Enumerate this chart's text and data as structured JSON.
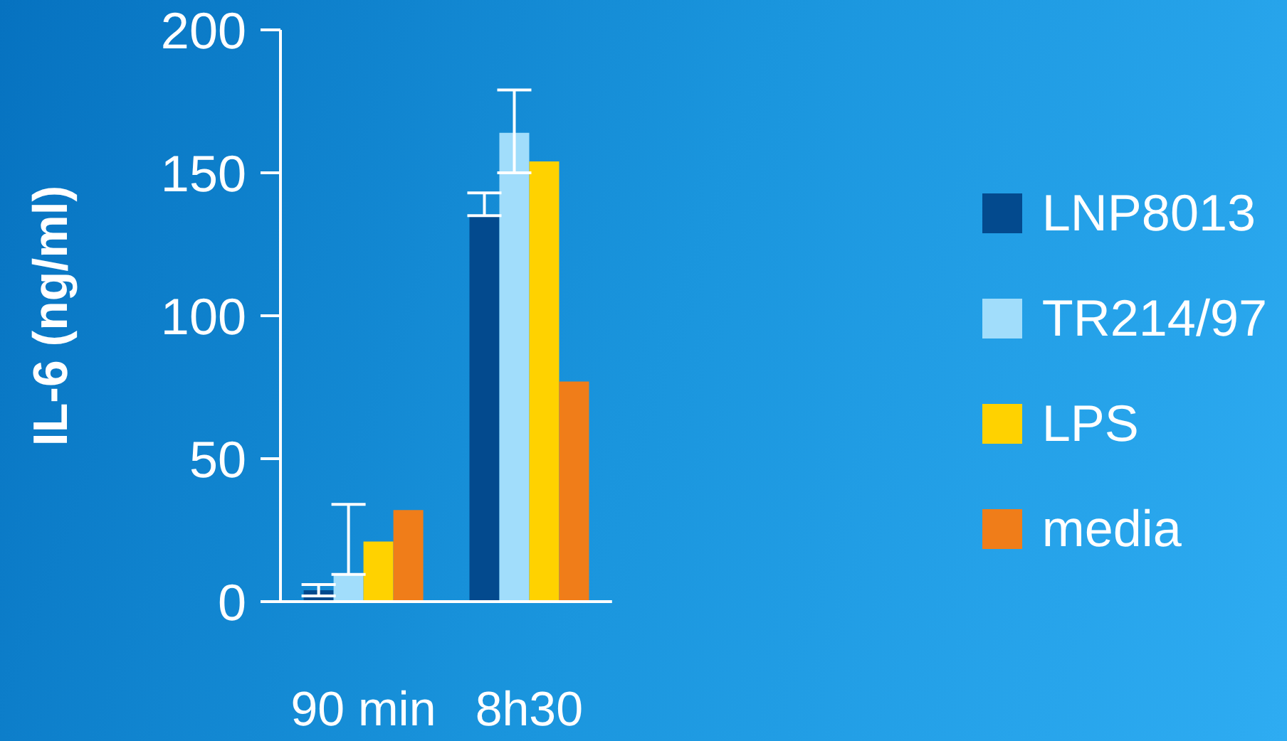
{
  "chart_data": {
    "type": "bar",
    "ylabel": "IL-6 (ng/ml)",
    "categories": [
      "90 min",
      "8h30"
    ],
    "series": [
      {
        "name": "LNP8013",
        "color": "#034a8e",
        "values": [
          4,
          135
        ],
        "errors": [
          2,
          [
            135,
            143
          ]
        ]
      },
      {
        "name": "TR214/97",
        "color": "#a1ddfb",
        "values": [
          9.5,
          164
        ],
        "errors": [
          [
            9.5,
            34
          ],
          [
            150,
            179
          ]
        ]
      },
      {
        "name": "LPS",
        "color": "#ffd200",
        "values": [
          21,
          154
        ]
      },
      {
        "name": "media",
        "color": "#f07d19",
        "values": [
          32,
          77
        ]
      }
    ],
    "ylim": [
      0,
      200
    ],
    "yticks": [
      0,
      50,
      100,
      150,
      200
    ],
    "grid": false,
    "legend": "right"
  }
}
